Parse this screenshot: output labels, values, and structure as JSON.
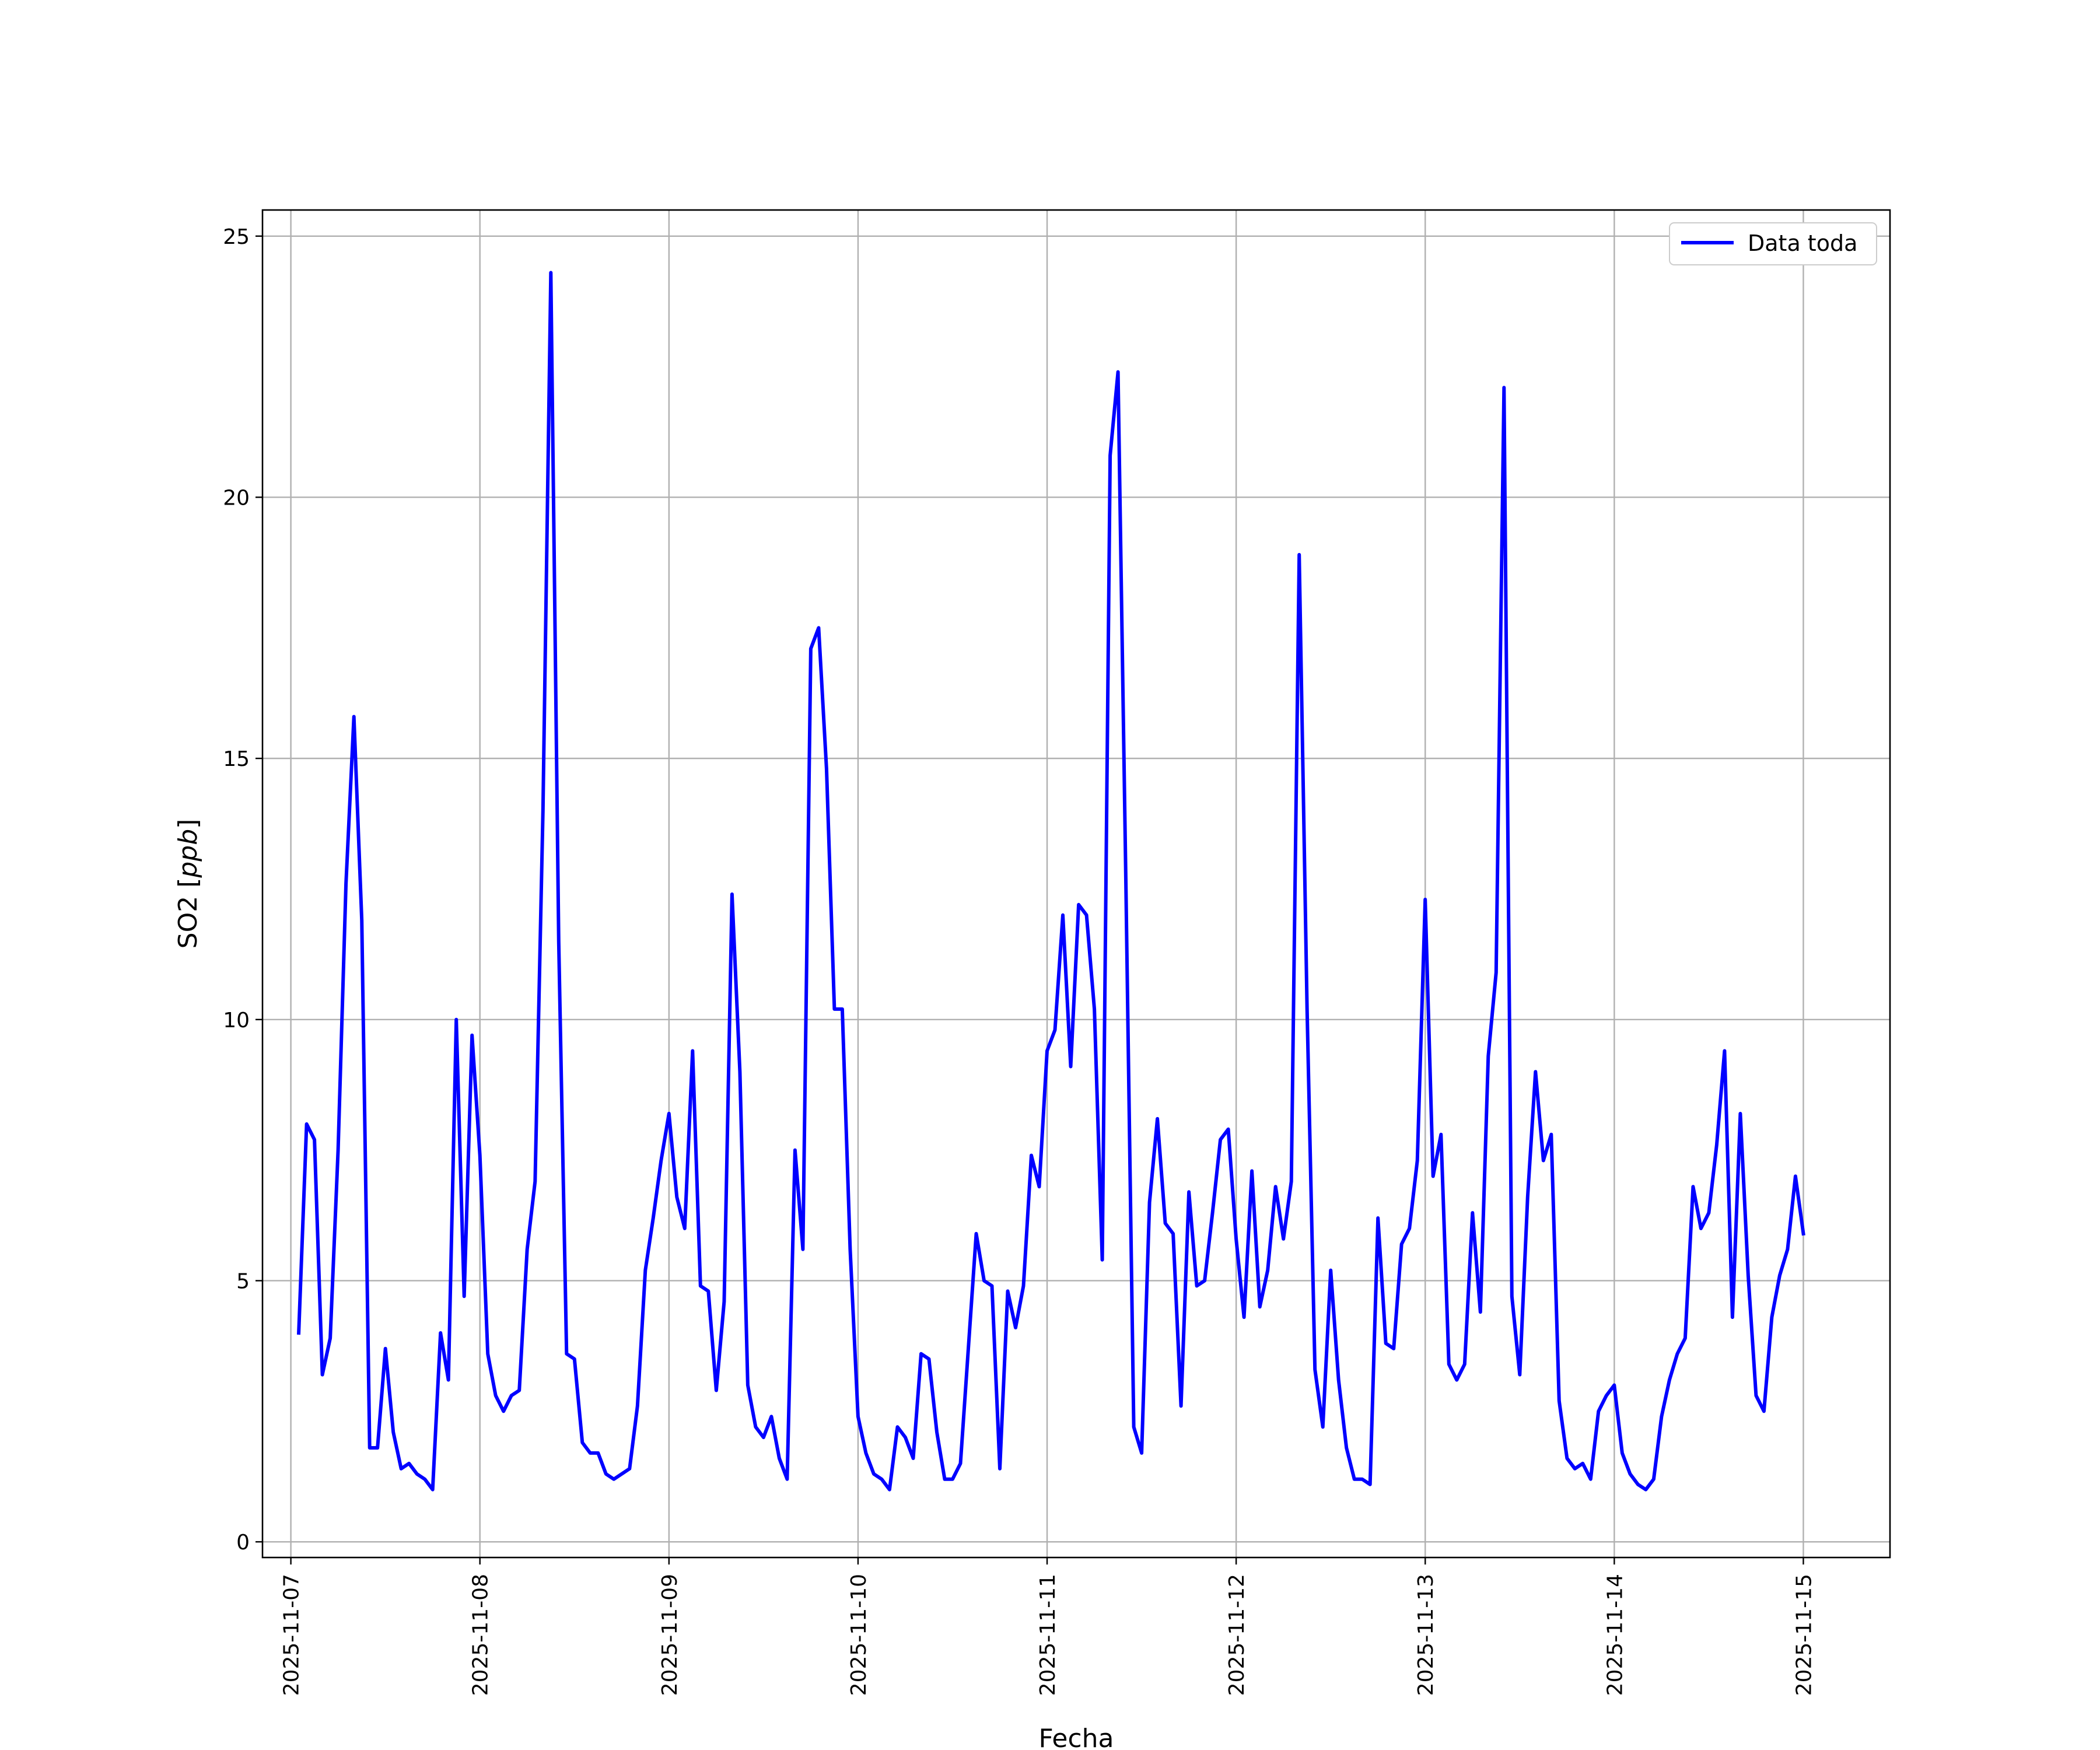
{
  "chart_data": {
    "type": "line",
    "xlabel": "Fecha",
    "ylabel": "SO2 [ppb]",
    "ylabel_parts": {
      "prefix": "SO2 [",
      "unit": "ppb",
      "suffix": "]"
    },
    "xlim": [
      "2025-11-06T20:24",
      "2025-11-15T11:00"
    ],
    "ylim": [
      -0.3,
      25.5
    ],
    "x_ticks": [
      "2025-11-07",
      "2025-11-08",
      "2025-11-09",
      "2025-11-10",
      "2025-11-11",
      "2025-11-12",
      "2025-11-13",
      "2025-11-14",
      "2025-11-15"
    ],
    "y_ticks": [
      0,
      5,
      10,
      15,
      20,
      25
    ],
    "grid": true,
    "legend_position": "top-right",
    "series": [
      {
        "name": "Data toda",
        "color": "#0000ff",
        "points": [
          [
            "2025-11-07T01:00",
            4.0
          ],
          [
            "2025-11-07T02:00",
            8.0
          ],
          [
            "2025-11-07T03:00",
            7.7
          ],
          [
            "2025-11-07T04:00",
            3.2
          ],
          [
            "2025-11-07T05:00",
            3.9
          ],
          [
            "2025-11-07T06:00",
            7.5
          ],
          [
            "2025-11-07T07:00",
            12.6
          ],
          [
            "2025-11-07T08:00",
            15.8
          ],
          [
            "2025-11-07T09:00",
            11.9
          ],
          [
            "2025-11-07T10:00",
            1.8
          ],
          [
            "2025-11-07T11:00",
            1.8
          ],
          [
            "2025-11-07T12:00",
            3.7
          ],
          [
            "2025-11-07T13:00",
            2.1
          ],
          [
            "2025-11-07T14:00",
            1.4
          ],
          [
            "2025-11-07T15:00",
            1.5
          ],
          [
            "2025-11-07T16:00",
            1.3
          ],
          [
            "2025-11-07T17:00",
            1.2
          ],
          [
            "2025-11-07T18:00",
            1.0
          ],
          [
            "2025-11-07T19:00",
            4.0
          ],
          [
            "2025-11-07T20:00",
            3.1
          ],
          [
            "2025-11-07T21:00",
            10.0
          ],
          [
            "2025-11-07T22:00",
            4.7
          ],
          [
            "2025-11-07T23:00",
            9.7
          ],
          [
            "2025-11-08T00:00",
            7.4
          ],
          [
            "2025-11-08T01:00",
            3.6
          ],
          [
            "2025-11-08T02:00",
            2.8
          ],
          [
            "2025-11-08T03:00",
            2.5
          ],
          [
            "2025-11-08T04:00",
            2.8
          ],
          [
            "2025-11-08T05:00",
            2.9
          ],
          [
            "2025-11-08T06:00",
            5.6
          ],
          [
            "2025-11-08T07:00",
            6.9
          ],
          [
            "2025-11-08T08:00",
            14.0
          ],
          [
            "2025-11-08T09:00",
            24.3
          ],
          [
            "2025-11-08T10:00",
            11.5
          ],
          [
            "2025-11-08T11:00",
            3.6
          ],
          [
            "2025-11-08T12:00",
            3.5
          ],
          [
            "2025-11-08T13:00",
            1.9
          ],
          [
            "2025-11-08T14:00",
            1.7
          ],
          [
            "2025-11-08T15:00",
            1.7
          ],
          [
            "2025-11-08T16:00",
            1.3
          ],
          [
            "2025-11-08T17:00",
            1.2
          ],
          [
            "2025-11-08T18:00",
            1.3
          ],
          [
            "2025-11-08T19:00",
            1.4
          ],
          [
            "2025-11-08T20:00",
            2.6
          ],
          [
            "2025-11-08T21:00",
            5.2
          ],
          [
            "2025-11-08T22:00",
            6.2
          ],
          [
            "2025-11-08T23:00",
            7.3
          ],
          [
            "2025-11-09T00:00",
            8.2
          ],
          [
            "2025-11-09T01:00",
            6.6
          ],
          [
            "2025-11-09T02:00",
            6.0
          ],
          [
            "2025-11-09T03:00",
            9.4
          ],
          [
            "2025-11-09T04:00",
            4.9
          ],
          [
            "2025-11-09T05:00",
            4.8
          ],
          [
            "2025-11-09T06:00",
            2.9
          ],
          [
            "2025-11-09T07:00",
            4.6
          ],
          [
            "2025-11-09T08:00",
            12.4
          ],
          [
            "2025-11-09T09:00",
            9.0
          ],
          [
            "2025-11-09T10:00",
            3.0
          ],
          [
            "2025-11-09T11:00",
            2.2
          ],
          [
            "2025-11-09T12:00",
            2.0
          ],
          [
            "2025-11-09T13:00",
            2.4
          ],
          [
            "2025-11-09T14:00",
            1.6
          ],
          [
            "2025-11-09T15:00",
            1.2
          ],
          [
            "2025-11-09T16:00",
            7.5
          ],
          [
            "2025-11-09T17:00",
            5.6
          ],
          [
            "2025-11-09T18:00",
            17.1
          ],
          [
            "2025-11-09T19:00",
            17.5
          ],
          [
            "2025-11-09T20:00",
            14.8
          ],
          [
            "2025-11-09T21:00",
            10.2
          ],
          [
            "2025-11-09T22:00",
            10.2
          ],
          [
            "2025-11-09T23:00",
            5.6
          ],
          [
            "2025-11-10T00:00",
            2.4
          ],
          [
            "2025-11-10T01:00",
            1.7
          ],
          [
            "2025-11-10T02:00",
            1.3
          ],
          [
            "2025-11-10T03:00",
            1.2
          ],
          [
            "2025-11-10T04:00",
            1.0
          ],
          [
            "2025-11-10T05:00",
            2.2
          ],
          [
            "2025-11-10T06:00",
            2.0
          ],
          [
            "2025-11-10T07:00",
            1.6
          ],
          [
            "2025-11-10T08:00",
            3.6
          ],
          [
            "2025-11-10T09:00",
            3.5
          ],
          [
            "2025-11-10T10:00",
            2.1
          ],
          [
            "2025-11-10T11:00",
            1.2
          ],
          [
            "2025-11-10T12:00",
            1.2
          ],
          [
            "2025-11-10T13:00",
            1.5
          ],
          [
            "2025-11-10T14:00",
            3.7
          ],
          [
            "2025-11-10T15:00",
            5.9
          ],
          [
            "2025-11-10T16:00",
            5.0
          ],
          [
            "2025-11-10T17:00",
            4.9
          ],
          [
            "2025-11-10T18:00",
            1.4
          ],
          [
            "2025-11-10T19:00",
            4.8
          ],
          [
            "2025-11-10T20:00",
            4.1
          ],
          [
            "2025-11-10T21:00",
            4.9
          ],
          [
            "2025-11-10T22:00",
            7.4
          ],
          [
            "2025-11-10T23:00",
            6.8
          ],
          [
            "2025-11-11T00:00",
            9.4
          ],
          [
            "2025-11-11T01:00",
            9.8
          ],
          [
            "2025-11-11T02:00",
            12.0
          ],
          [
            "2025-11-11T03:00",
            9.1
          ],
          [
            "2025-11-11T04:00",
            12.2
          ],
          [
            "2025-11-11T05:00",
            12.0
          ],
          [
            "2025-11-11T06:00",
            10.2
          ],
          [
            "2025-11-11T07:00",
            5.4
          ],
          [
            "2025-11-11T08:00",
            20.8
          ],
          [
            "2025-11-11T09:00",
            22.4
          ],
          [
            "2025-11-11T10:00",
            12.6
          ],
          [
            "2025-11-11T11:00",
            2.2
          ],
          [
            "2025-11-11T12:00",
            1.7
          ],
          [
            "2025-11-11T13:00",
            6.5
          ],
          [
            "2025-11-11T14:00",
            8.1
          ],
          [
            "2025-11-11T15:00",
            6.1
          ],
          [
            "2025-11-11T16:00",
            5.9
          ],
          [
            "2025-11-11T17:00",
            2.6
          ],
          [
            "2025-11-11T18:00",
            6.7
          ],
          [
            "2025-11-11T19:00",
            4.9
          ],
          [
            "2025-11-11T20:00",
            5.0
          ],
          [
            "2025-11-11T21:00",
            6.3
          ],
          [
            "2025-11-11T22:00",
            7.7
          ],
          [
            "2025-11-11T23:00",
            7.9
          ],
          [
            "2025-11-12T00:00",
            5.8
          ],
          [
            "2025-11-12T01:00",
            4.3
          ],
          [
            "2025-11-12T02:00",
            7.1
          ],
          [
            "2025-11-12T03:00",
            4.5
          ],
          [
            "2025-11-12T04:00",
            5.2
          ],
          [
            "2025-11-12T05:00",
            6.8
          ],
          [
            "2025-11-12T06:00",
            5.8
          ],
          [
            "2025-11-12T07:00",
            6.9
          ],
          [
            "2025-11-12T08:00",
            18.9
          ],
          [
            "2025-11-12T09:00",
            10.2
          ],
          [
            "2025-11-12T10:00",
            3.3
          ],
          [
            "2025-11-12T11:00",
            2.2
          ],
          [
            "2025-11-12T12:00",
            5.2
          ],
          [
            "2025-11-12T13:00",
            3.1
          ],
          [
            "2025-11-12T14:00",
            1.8
          ],
          [
            "2025-11-12T15:00",
            1.2
          ],
          [
            "2025-11-12T16:00",
            1.2
          ],
          [
            "2025-11-12T17:00",
            1.1
          ],
          [
            "2025-11-12T18:00",
            6.2
          ],
          [
            "2025-11-12T19:00",
            3.8
          ],
          [
            "2025-11-12T20:00",
            3.7
          ],
          [
            "2025-11-12T21:00",
            5.7
          ],
          [
            "2025-11-12T22:00",
            6.0
          ],
          [
            "2025-11-12T23:00",
            7.3
          ],
          [
            "2025-11-13T00:00",
            12.3
          ],
          [
            "2025-11-13T01:00",
            7.0
          ],
          [
            "2025-11-13T02:00",
            7.8
          ],
          [
            "2025-11-13T03:00",
            3.4
          ],
          [
            "2025-11-13T04:00",
            3.1
          ],
          [
            "2025-11-13T05:00",
            3.4
          ],
          [
            "2025-11-13T06:00",
            6.3
          ],
          [
            "2025-11-13T07:00",
            4.4
          ],
          [
            "2025-11-13T08:00",
            9.3
          ],
          [
            "2025-11-13T09:00",
            10.9
          ],
          [
            "2025-11-13T10:00",
            22.1
          ],
          [
            "2025-11-13T11:00",
            4.7
          ],
          [
            "2025-11-13T12:00",
            3.2
          ],
          [
            "2025-11-13T13:00",
            6.6
          ],
          [
            "2025-11-13T14:00",
            9.0
          ],
          [
            "2025-11-13T15:00",
            7.3
          ],
          [
            "2025-11-13T16:00",
            7.8
          ],
          [
            "2025-11-13T17:00",
            2.7
          ],
          [
            "2025-11-13T18:00",
            1.6
          ],
          [
            "2025-11-13T19:00",
            1.4
          ],
          [
            "2025-11-13T20:00",
            1.5
          ],
          [
            "2025-11-13T21:00",
            1.2
          ],
          [
            "2025-11-13T22:00",
            2.5
          ],
          [
            "2025-11-13T23:00",
            2.8
          ],
          [
            "2025-11-14T00:00",
            3.0
          ],
          [
            "2025-11-14T01:00",
            1.7
          ],
          [
            "2025-11-14T02:00",
            1.3
          ],
          [
            "2025-11-14T03:00",
            1.1
          ],
          [
            "2025-11-14T04:00",
            1.0
          ],
          [
            "2025-11-14T05:00",
            1.2
          ],
          [
            "2025-11-14T06:00",
            2.4
          ],
          [
            "2025-11-14T07:00",
            3.1
          ],
          [
            "2025-11-14T08:00",
            3.6
          ],
          [
            "2025-11-14T09:00",
            3.9
          ],
          [
            "2025-11-14T10:00",
            6.8
          ],
          [
            "2025-11-14T11:00",
            6.0
          ],
          [
            "2025-11-14T12:00",
            6.3
          ],
          [
            "2025-11-14T13:00",
            7.6
          ],
          [
            "2025-11-14T14:00",
            9.4
          ],
          [
            "2025-11-14T15:00",
            4.3
          ],
          [
            "2025-11-14T16:00",
            8.2
          ],
          [
            "2025-11-14T17:00",
            5.1
          ],
          [
            "2025-11-14T18:00",
            2.8
          ],
          [
            "2025-11-14T19:00",
            2.5
          ],
          [
            "2025-11-14T20:00",
            4.3
          ],
          [
            "2025-11-14T21:00",
            5.1
          ],
          [
            "2025-11-14T22:00",
            5.6
          ],
          [
            "2025-11-14T23:00",
            7.0
          ],
          [
            "2025-11-15T00:00",
            5.9
          ]
        ]
      }
    ]
  }
}
